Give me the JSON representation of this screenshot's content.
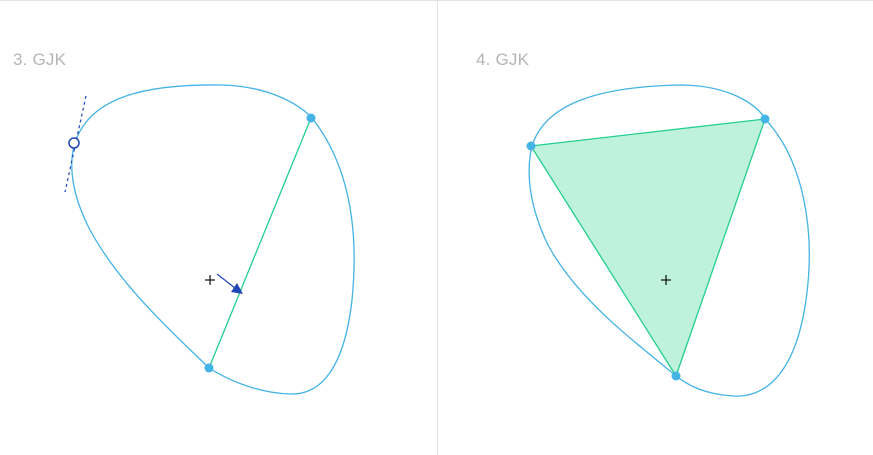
{
  "panels": [
    {
      "title": "3. GJK"
    },
    {
      "title": "4. GJK"
    }
  ],
  "colors": {
    "background": "#ffffff",
    "rule": "#e2e2e2",
    "title": "#b5b5b5",
    "shape_outline": "#44b3e6",
    "vertex": "#44b3e6",
    "simplex_edge": "#22cf8e",
    "simplex_fill": "#bff2dd",
    "direction_arrow": "#2046b8",
    "support_point": "#2046b8",
    "origin_marker": "#111111"
  }
}
